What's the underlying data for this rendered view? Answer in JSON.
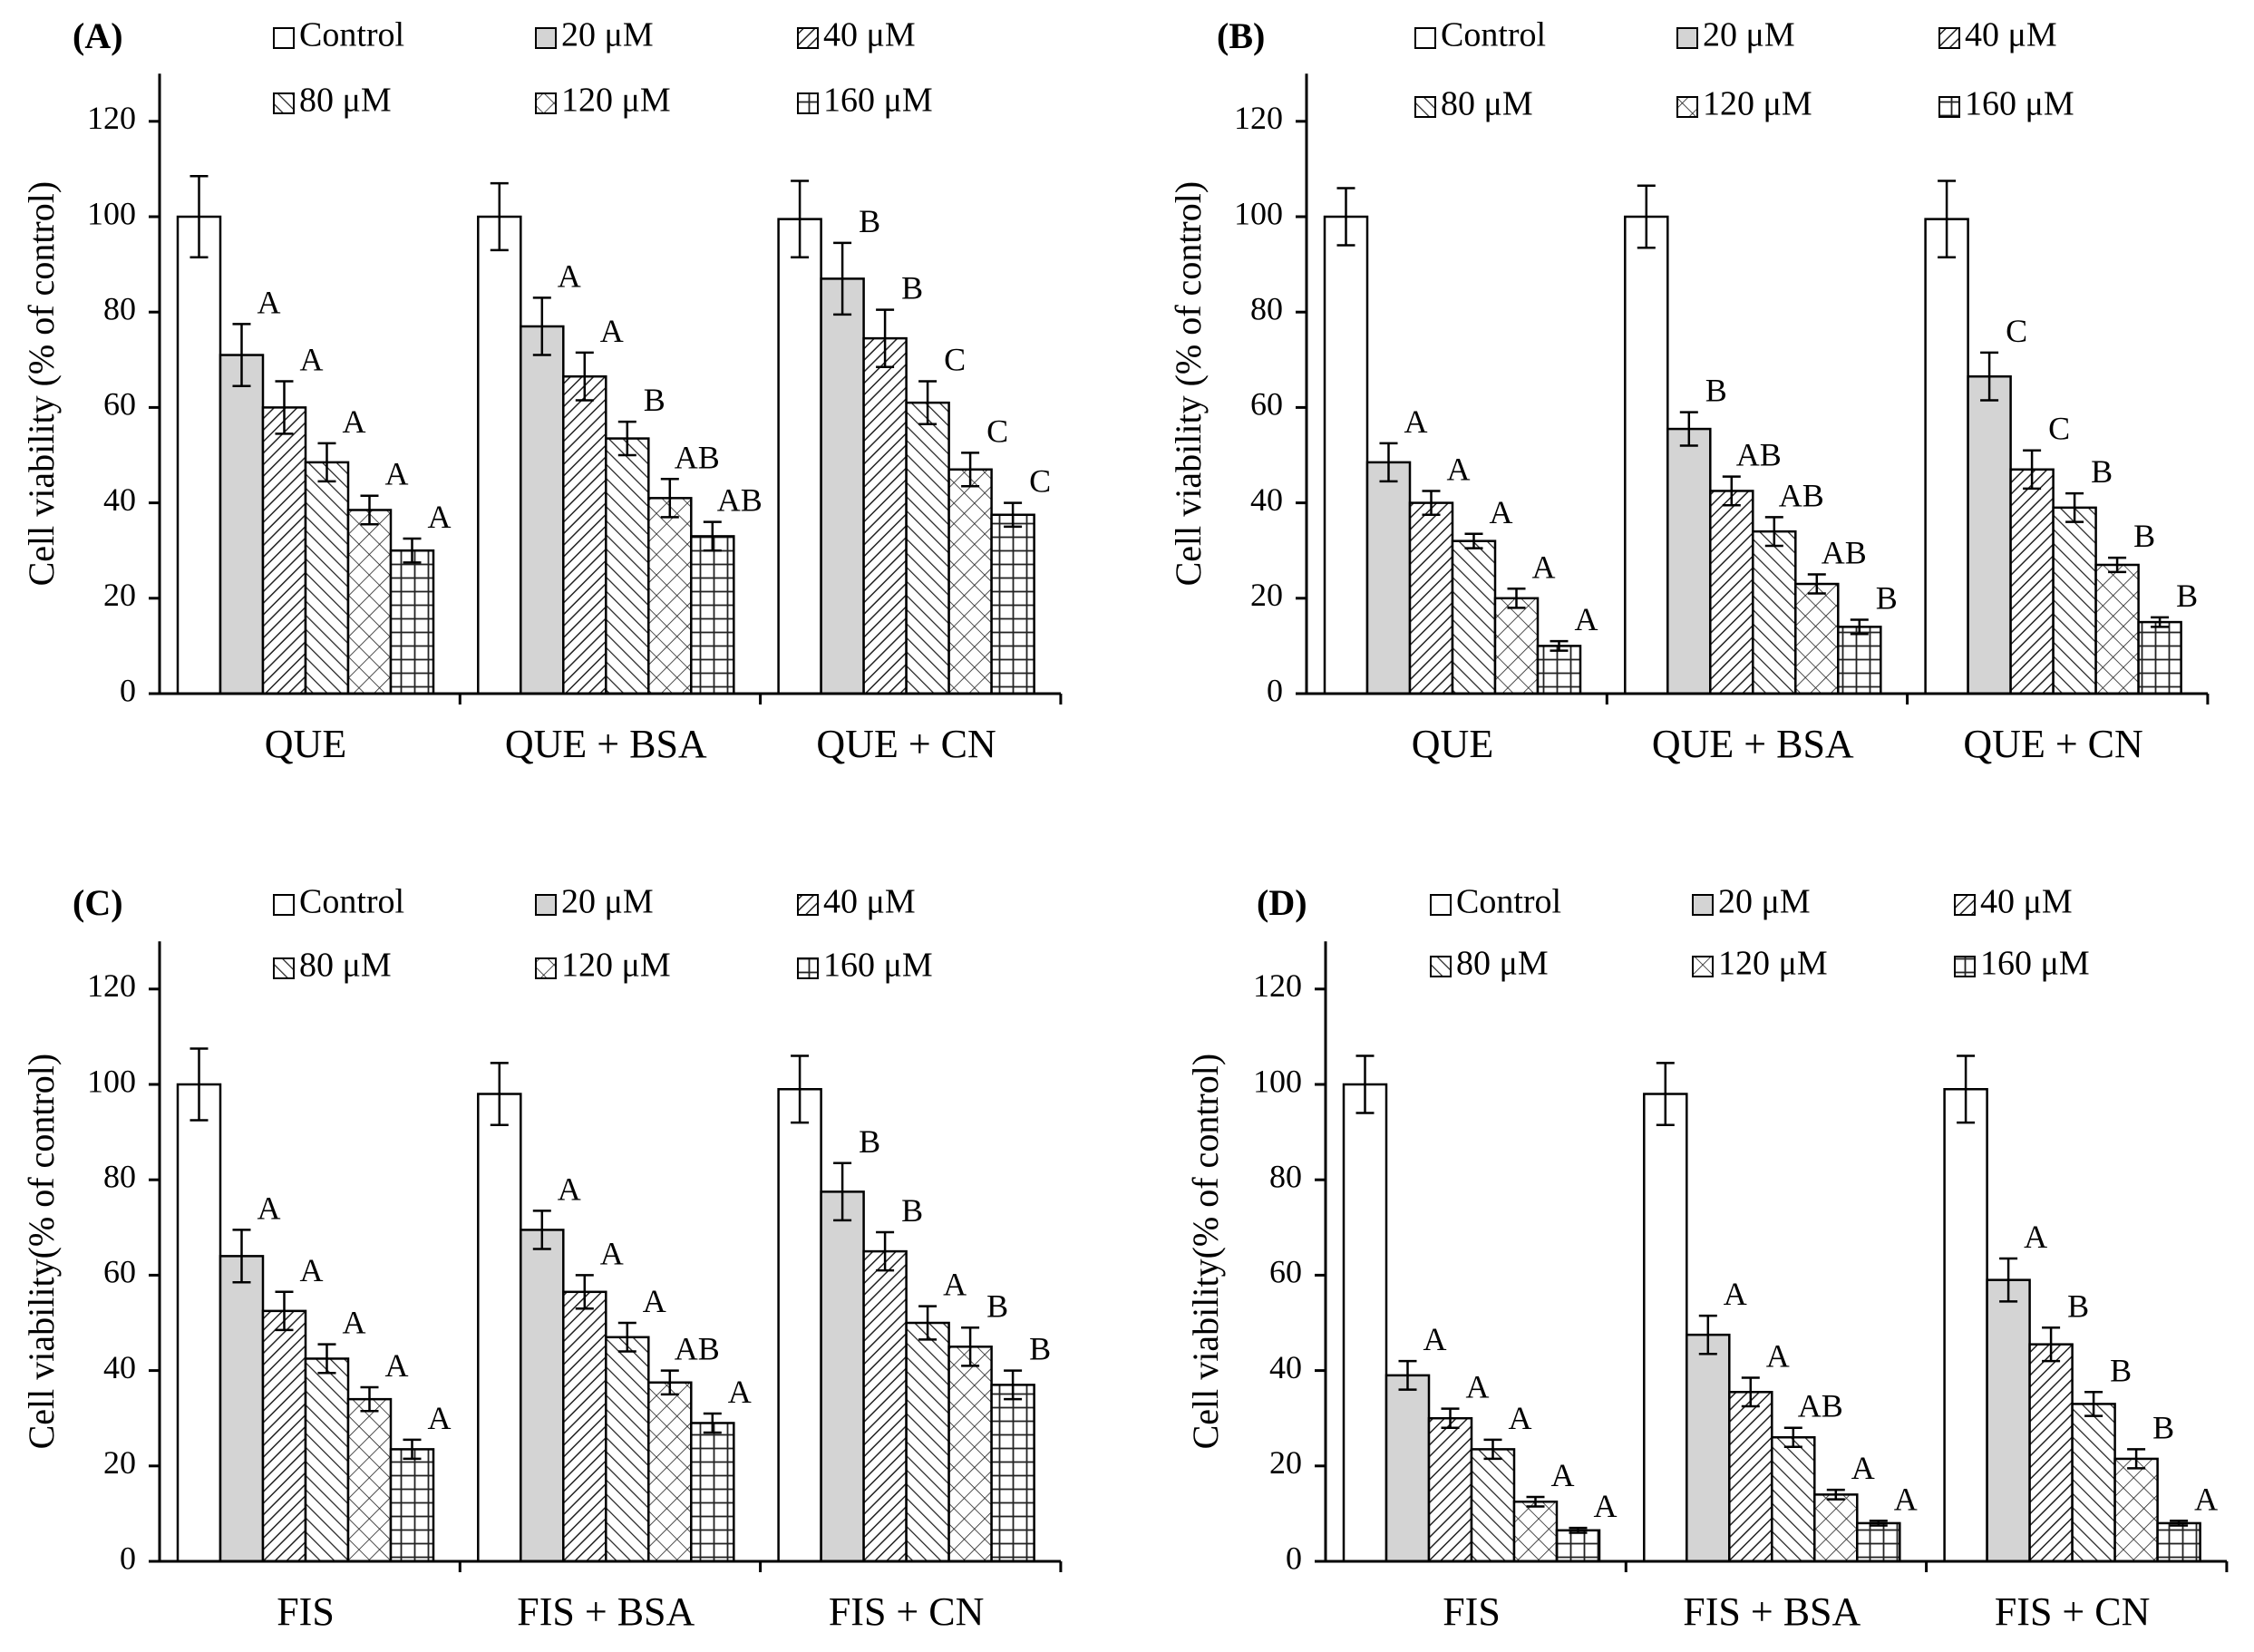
{
  "legend": {
    "series": [
      "Control",
      "20 μM",
      "40 μM",
      "80 μM",
      "120 μM",
      "160 μM"
    ]
  },
  "colors": {
    "axis": "#000000",
    "control_fill": "#ffffff",
    "dose20_fill": "#d4d4d4",
    "pattern_stroke": "#222222"
  },
  "chart_data": [
    {
      "type": "bar",
      "panel_label": "(A)",
      "ylabel": "Cell viability (% of control)",
      "ylim": [
        0,
        130
      ],
      "yticks": [
        0,
        20,
        40,
        60,
        80,
        100,
        120
      ],
      "categories": [
        "QUE",
        "QUE + BSA",
        "QUE + CN"
      ],
      "series": [
        {
          "name": "Control",
          "values": [
            100,
            100,
            99.5
          ],
          "errors": [
            8.5,
            7,
            8
          ],
          "labels": [
            "",
            "",
            ""
          ]
        },
        {
          "name": "20 μM",
          "values": [
            71,
            77,
            87
          ],
          "errors": [
            6.5,
            6,
            7.5
          ],
          "labels": [
            "A",
            "A",
            "B"
          ]
        },
        {
          "name": "40 μM",
          "values": [
            60,
            66.5,
            74.5
          ],
          "errors": [
            5.5,
            5,
            6
          ],
          "labels": [
            "A",
            "A",
            "B"
          ]
        },
        {
          "name": "80 μM",
          "values": [
            48.5,
            53.5,
            61
          ],
          "errors": [
            4,
            3.5,
            4.5
          ],
          "labels": [
            "A",
            "B",
            "C"
          ]
        },
        {
          "name": "120 μM",
          "values": [
            38.5,
            41,
            47
          ],
          "errors": [
            3,
            4,
            3.5
          ],
          "labels": [
            "A",
            "AB",
            "C"
          ]
        },
        {
          "name": "160 μM",
          "values": [
            30,
            33,
            37.5
          ],
          "errors": [
            2.5,
            3,
            2.5
          ],
          "labels": [
            "A",
            "AB",
            "C"
          ]
        }
      ]
    },
    {
      "type": "bar",
      "panel_label": "(B)",
      "ylabel": "Cell viability (% of control)",
      "ylim": [
        0,
        130
      ],
      "yticks": [
        0,
        20,
        40,
        60,
        80,
        100,
        120
      ],
      "categories": [
        "QUE",
        "QUE + BSA",
        "QUE + CN"
      ],
      "series": [
        {
          "name": "Control",
          "values": [
            100,
            100,
            99.5
          ],
          "errors": [
            6,
            6.5,
            8
          ],
          "labels": [
            "",
            "",
            ""
          ]
        },
        {
          "name": "20 μM",
          "values": [
            48.5,
            55.5,
            66.5
          ],
          "errors": [
            4,
            3.5,
            5
          ],
          "labels": [
            "A",
            "B",
            "C"
          ]
        },
        {
          "name": "40 μM",
          "values": [
            40,
            42.5,
            47
          ],
          "errors": [
            2.5,
            3,
            4
          ],
          "labels": [
            "A",
            "AB",
            "C"
          ]
        },
        {
          "name": "80 μM",
          "values": [
            32,
            34,
            39
          ],
          "errors": [
            1.5,
            3,
            3
          ],
          "labels": [
            "A",
            "AB",
            "B"
          ]
        },
        {
          "name": "120 μM",
          "values": [
            20,
            23,
            27
          ],
          "errors": [
            2,
            2,
            1.5
          ],
          "labels": [
            "A",
            "AB",
            "B"
          ]
        },
        {
          "name": "160 μM",
          "values": [
            10,
            14,
            15
          ],
          "errors": [
            1,
            1.5,
            1
          ],
          "labels": [
            "A",
            "B",
            "B"
          ]
        }
      ]
    },
    {
      "type": "bar",
      "panel_label": "(C)",
      "ylabel": "Cell viability(% of control)",
      "ylim": [
        0,
        130
      ],
      "yticks": [
        0,
        20,
        40,
        60,
        80,
        100,
        120
      ],
      "categories": [
        "FIS",
        "FIS + BSA",
        "FIS + CN"
      ],
      "series": [
        {
          "name": "Control",
          "values": [
            100,
            98,
            99
          ],
          "errors": [
            7.5,
            6.5,
            7
          ],
          "labels": [
            "",
            "",
            ""
          ]
        },
        {
          "name": "20 μM",
          "values": [
            64,
            69.5,
            77.5
          ],
          "errors": [
            5.5,
            4,
            6
          ],
          "labels": [
            "A",
            "A",
            "B"
          ]
        },
        {
          "name": "40 μM",
          "values": [
            52.5,
            56.5,
            65
          ],
          "errors": [
            4,
            3.5,
            4
          ],
          "labels": [
            "A",
            "A",
            "B"
          ]
        },
        {
          "name": "80 μM",
          "values": [
            42.5,
            47,
            50
          ],
          "errors": [
            3,
            3,
            3.5
          ],
          "labels": [
            "A",
            "A",
            "A"
          ]
        },
        {
          "name": "120 μM",
          "values": [
            34,
            37.5,
            45
          ],
          "errors": [
            2.5,
            2.5,
            4
          ],
          "labels": [
            "A",
            "AB",
            "B"
          ]
        },
        {
          "name": "160 μM",
          "values": [
            23.5,
            29,
            37
          ],
          "errors": [
            2,
            2,
            3
          ],
          "labels": [
            "A",
            "A",
            "B"
          ]
        }
      ]
    },
    {
      "type": "bar",
      "panel_label": "(D)",
      "ylabel": "Cell viability(% of control)",
      "ylim": [
        0,
        130
      ],
      "yticks": [
        0,
        20,
        40,
        60,
        80,
        100,
        120
      ],
      "categories": [
        "FIS",
        "FIS + BSA",
        "FIS + CN"
      ],
      "series": [
        {
          "name": "Control",
          "values": [
            100,
            98,
            99
          ],
          "errors": [
            6,
            6.5,
            7
          ],
          "labels": [
            "",
            "",
            ""
          ]
        },
        {
          "name": "20 μM",
          "values": [
            39,
            47.5,
            59
          ],
          "errors": [
            3,
            4,
            4.5
          ],
          "labels": [
            "A",
            "A",
            "A"
          ]
        },
        {
          "name": "40 μM",
          "values": [
            30,
            35.5,
            45.5
          ],
          "errors": [
            2,
            3,
            3.5
          ],
          "labels": [
            "A",
            "A",
            "B"
          ]
        },
        {
          "name": "80 μM",
          "values": [
            23.5,
            26,
            33
          ],
          "errors": [
            2,
            2,
            2.5
          ],
          "labels": [
            "A",
            "AB",
            "B"
          ]
        },
        {
          "name": "120 μM",
          "values": [
            12.5,
            14,
            21.5
          ],
          "errors": [
            1,
            1,
            2
          ],
          "labels": [
            "A",
            "A",
            "B"
          ]
        },
        {
          "name": "160 μM",
          "values": [
            6.5,
            8,
            8
          ],
          "errors": [
            0.5,
            0.5,
            0.5
          ],
          "labels": [
            "A",
            "A",
            "A"
          ]
        }
      ]
    }
  ]
}
